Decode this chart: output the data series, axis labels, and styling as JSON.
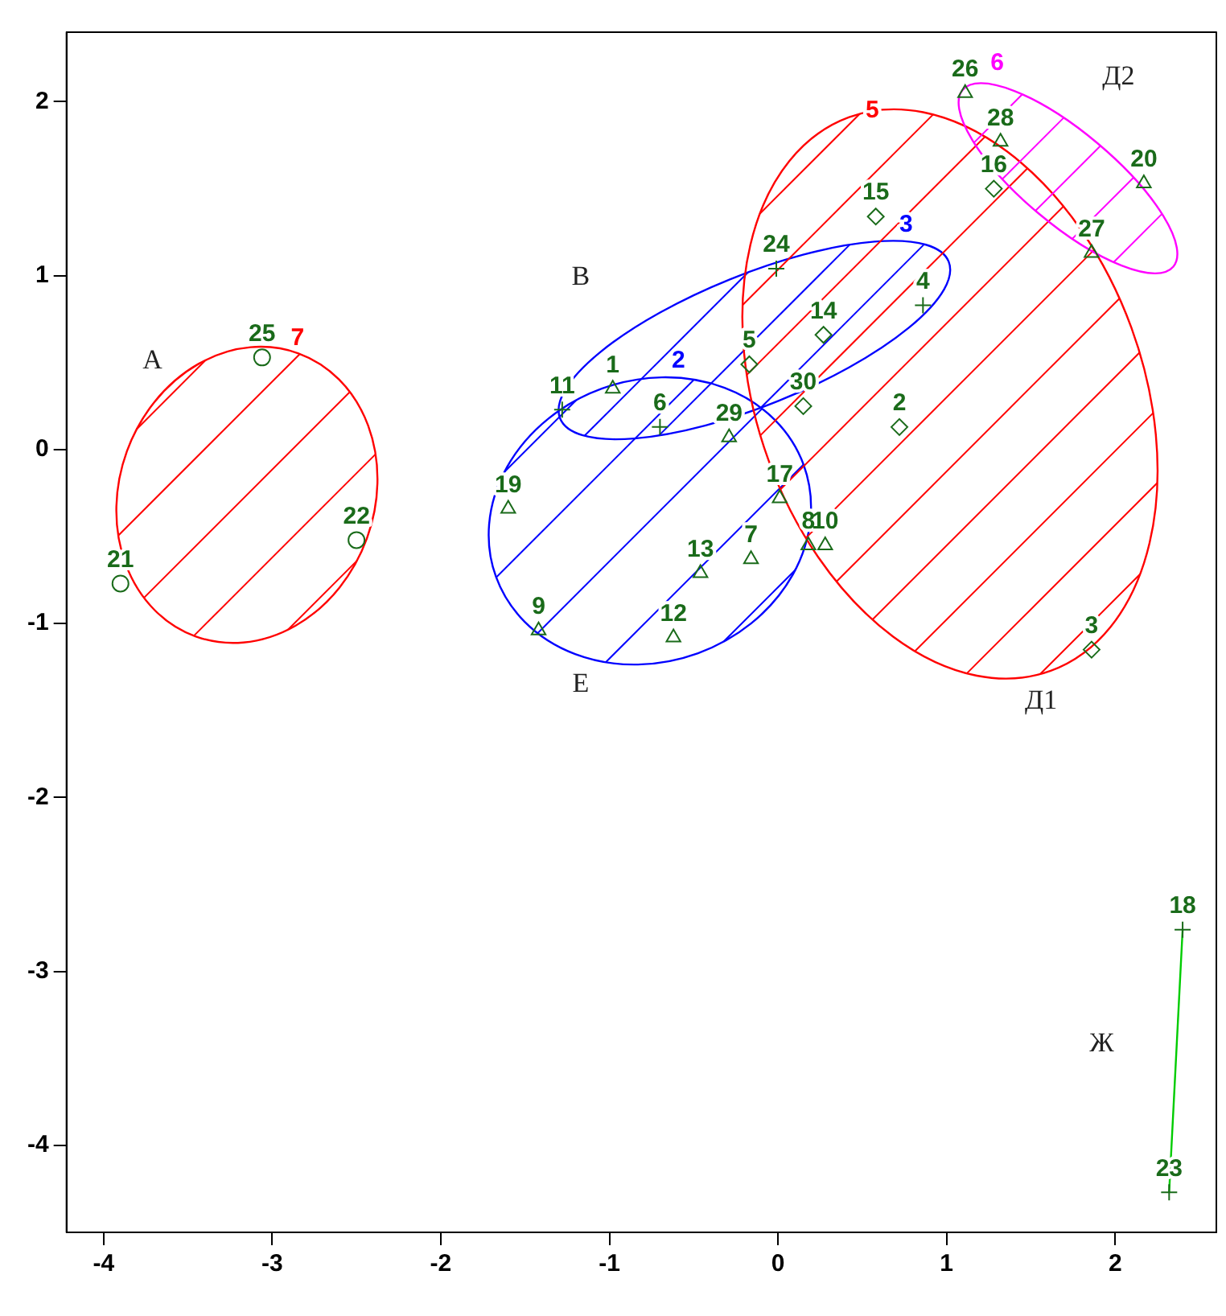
{
  "chart_data": {
    "type": "scatter",
    "xlim": [
      -4.22,
      2.6
    ],
    "ylim": [
      -4.5,
      2.4
    ],
    "xticks": [
      -4,
      -3,
      -2,
      -1,
      0,
      1,
      2
    ],
    "yticks": [
      -4,
      -3,
      -2,
      -1,
      0,
      1,
      2
    ],
    "grid": false,
    "legend": false,
    "series": [
      {
        "type": "line",
        "color": "#00cc00",
        "line_style": "solid",
        "marker": "none",
        "x": [
          2.4,
          2.32
        ],
        "values": [
          -2.76,
          -4.27
        ]
      },
      {
        "type": "scatter",
        "color": "#1a6b1a",
        "marker": "triangle",
        "x": [
          -0.98,
          -0.29,
          -1.6,
          0.01,
          -0.46,
          -0.16,
          0.18,
          0.28,
          -1.42,
          -0.62,
          1.11,
          1.32,
          2.17,
          1.86
        ],
        "values": [
          0.35,
          0.07,
          -0.34,
          -0.28,
          -0.71,
          -0.63,
          -0.55,
          -0.55,
          -1.04,
          -1.08,
          2.05,
          1.77,
          1.53,
          1.13
        ]
      },
      {
        "type": "scatter",
        "color": "#1a6b1a",
        "marker": "cross",
        "x": [
          -1.28,
          -0.7,
          -0.01,
          0.86,
          2.4,
          2.32
        ],
        "values": [
          0.23,
          0.13,
          1.04,
          0.83,
          -2.76,
          -4.27
        ]
      },
      {
        "type": "scatter",
        "color": "#1a6b1a",
        "marker": "diamond",
        "x": [
          -0.17,
          0.27,
          0.15,
          0.72,
          1.86,
          0.58,
          1.28
        ],
        "values": [
          0.49,
          0.66,
          0.25,
          0.13,
          -1.15,
          1.34,
          1.5
        ]
      },
      {
        "type": "scatter",
        "color": "#1a6b1a",
        "marker": "circle",
        "x": [
          -3.06,
          -3.9,
          -2.5
        ],
        "values": [
          0.53,
          -0.77,
          -0.52
        ]
      }
    ],
    "annotations": [
      {
        "text": "1",
        "x": -0.98,
        "y": 0.35
      },
      {
        "text": "29",
        "x": -0.29,
        "y": 0.07
      },
      {
        "text": "19",
        "x": -1.6,
        "y": -0.34
      },
      {
        "text": "17",
        "x": 0.01,
        "y": -0.28
      },
      {
        "text": "13",
        "x": -0.46,
        "y": -0.71
      },
      {
        "text": "7",
        "x": -0.16,
        "y": -0.63
      },
      {
        "text": "8",
        "x": 0.18,
        "y": -0.55
      },
      {
        "text": "10",
        "x": 0.28,
        "y": -0.55
      },
      {
        "text": "9",
        "x": -1.42,
        "y": -1.04
      },
      {
        "text": "12",
        "x": -0.62,
        "y": -1.08
      },
      {
        "text": "26",
        "x": 1.11,
        "y": 2.05
      },
      {
        "text": "28",
        "x": 1.32,
        "y": 1.77
      },
      {
        "text": "20",
        "x": 2.17,
        "y": 1.53
      },
      {
        "text": "27",
        "x": 1.86,
        "y": 1.13
      },
      {
        "text": "11",
        "x": -1.28,
        "y": 0.23
      },
      {
        "text": "6",
        "x": -0.7,
        "y": 0.13
      },
      {
        "text": "24",
        "x": -0.01,
        "y": 1.04
      },
      {
        "text": "4",
        "x": 0.86,
        "y": 0.83
      },
      {
        "text": "18",
        "x": 2.4,
        "y": -2.76
      },
      {
        "text": "23",
        "x": 2.32,
        "y": -4.27
      },
      {
        "text": "5",
        "x": -0.17,
        "y": 0.49
      },
      {
        "text": "14",
        "x": 0.27,
        "y": 0.66
      },
      {
        "text": "30",
        "x": 0.15,
        "y": 0.25
      },
      {
        "text": "2",
        "x": 0.72,
        "y": 0.13
      },
      {
        "text": "3",
        "x": 1.86,
        "y": -1.15
      },
      {
        "text": "15",
        "x": 0.58,
        "y": 1.34
      },
      {
        "text": "16",
        "x": 1.28,
        "y": 1.5
      },
      {
        "text": "25",
        "x": -3.06,
        "y": 0.53
      },
      {
        "text": "21",
        "x": -3.9,
        "y": -0.77
      },
      {
        "text": "22",
        "x": -2.5,
        "y": -0.52
      },
      "7",
      "3",
      "2",
      "5",
      "6",
      "А",
      "В",
      "Е",
      "Д1",
      "Д2",
      "Ж"
    ]
  }
}
